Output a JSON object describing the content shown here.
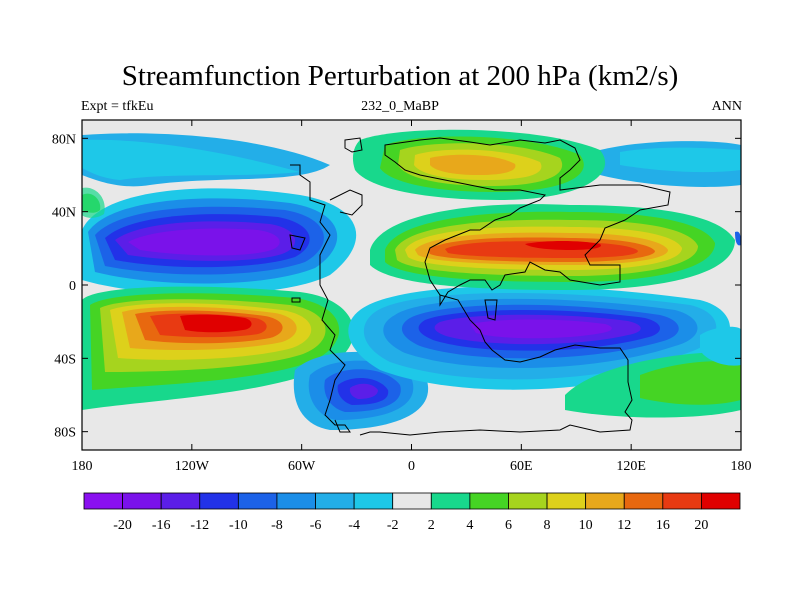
{
  "title": "Streamfunction Perturbation at 200 hPa (km2/s)",
  "subtitle_left": "Expt = tfkEu",
  "subtitle_center": "232_0_MaBP",
  "subtitle_right": "ANN",
  "lat_ticks": [
    "80N",
    "40N",
    "0",
    "40S",
    "80S"
  ],
  "lat_values": [
    80,
    40,
    0,
    -40,
    -80
  ],
  "lon_ticks": [
    "180",
    "120W",
    "60W",
    "0",
    "60E",
    "120E",
    "180"
  ],
  "lon_values": [
    -180,
    -120,
    -60,
    0,
    60,
    120,
    180
  ],
  "colorbar": {
    "labels": [
      "-20",
      "-16",
      "-12",
      "-10",
      "-8",
      "-6",
      "-4",
      "-2",
      "2",
      "4",
      "6",
      "8",
      "10",
      "12",
      "16",
      "20"
    ],
    "colors": [
      "#8a10f0",
      "#7a12ea",
      "#5b1ee8",
      "#2232e8",
      "#1c62e8",
      "#1b8ee8",
      "#23aee8",
      "#1ec8e8",
      "#e8e8e8",
      "#18d88c",
      "#45d424",
      "#a6d41e",
      "#ddd11b",
      "#e8a81b",
      "#e8680f",
      "#e83a12",
      "#e00000"
    ]
  },
  "colors": {
    "land_outline": "#000000",
    "neutral_fill": "#e8e8e8"
  }
}
